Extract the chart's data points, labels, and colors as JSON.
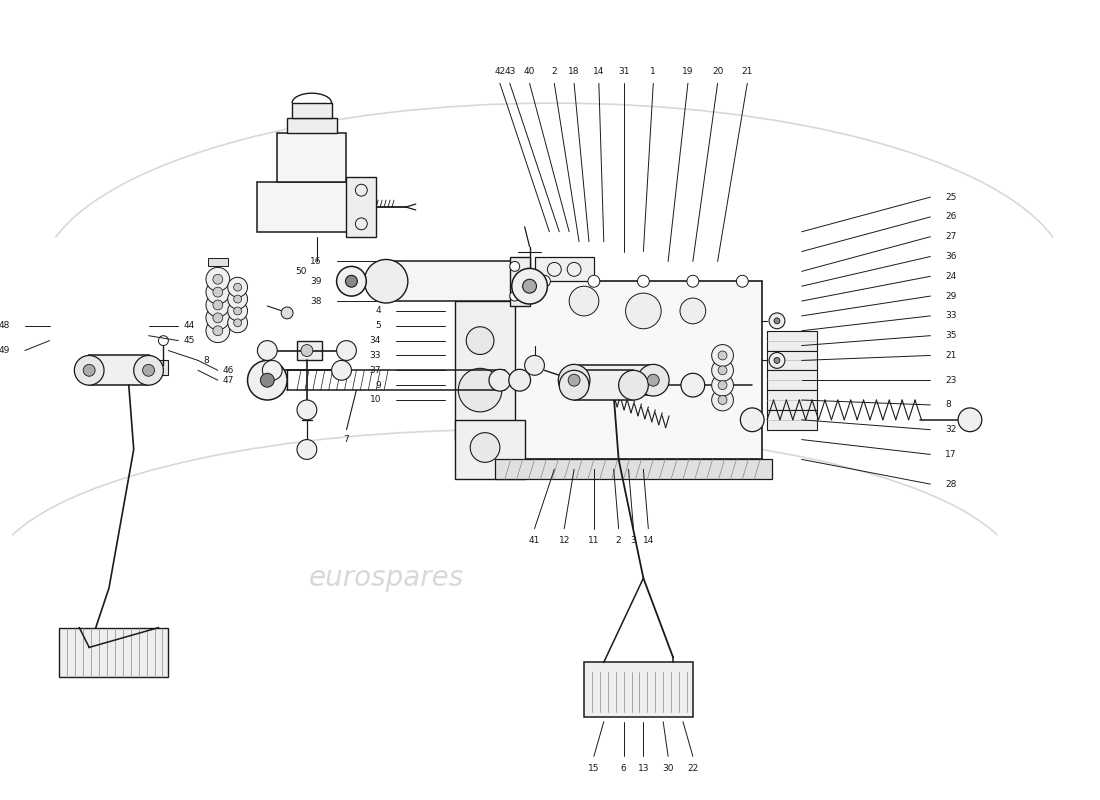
{
  "bg_color": "#ffffff",
  "line_color": "#1a1a1a",
  "wm_color": "#c8c8c8",
  "fig_w": 11.0,
  "fig_h": 8.0,
  "dpi": 100,
  "wm_text": "eurospares",
  "top_labels": [
    "42",
    "43",
    "40",
    "2",
    "18",
    "14",
    "31",
    "1",
    "19",
    "20",
    "21"
  ],
  "right_labels": [
    "25",
    "26",
    "27",
    "36",
    "24",
    "29",
    "33",
    "35",
    "21",
    "23",
    "8",
    "32",
    "17",
    "28"
  ],
  "left_labels": [
    "16",
    "39",
    "38",
    "4",
    "5",
    "34",
    "33",
    "37",
    "9",
    "10"
  ],
  "bot_labels": [
    "41",
    "12",
    "11",
    "2",
    "3",
    "14",
    "15",
    "6",
    "13",
    "30",
    "22"
  ]
}
